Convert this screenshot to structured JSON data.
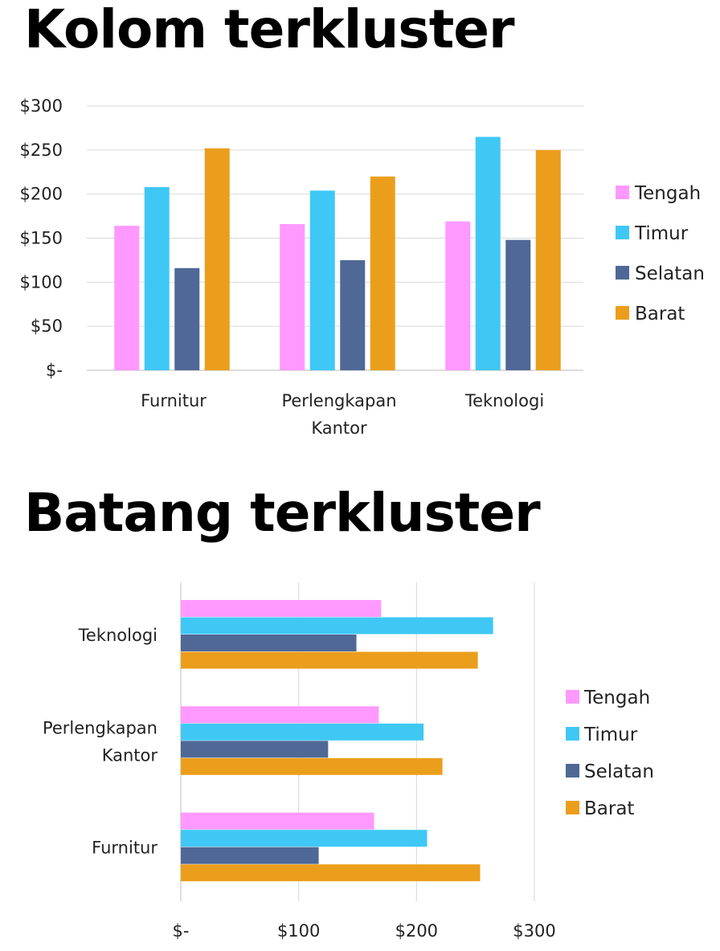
{
  "chart_data": [
    {
      "type": "bar",
      "orientation": "vertical",
      "title": "Kolom terkluster",
      "categories": [
        "Furnitur",
        "Perlengkapan Kantor",
        "Teknologi"
      ],
      "category_lines": [
        [
          "Furnitur"
        ],
        [
          "Perlengkapan",
          "Kantor"
        ],
        [
          "Teknologi"
        ]
      ],
      "series": [
        {
          "name": "Tengah",
          "color": "#FF99FF",
          "values": [
            164,
            166,
            169
          ]
        },
        {
          "name": "Timur",
          "color": "#3FC8F5",
          "values": [
            208,
            204,
            265
          ]
        },
        {
          "name": "Selatan",
          "color": "#4F6896",
          "values": [
            116,
            125,
            148
          ]
        },
        {
          "name": "Barat",
          "color": "#EB9E1C",
          "values": [
            252,
            220,
            250
          ]
        }
      ],
      "ylim": [
        0,
        300
      ],
      "ticks": [
        0,
        50,
        100,
        150,
        200,
        250,
        300
      ],
      "tick_labels": [
        "$-",
        "$50",
        "$100",
        "$150",
        "$200",
        "$250",
        "$300"
      ],
      "grid": true,
      "legend": "right"
    },
    {
      "type": "bar",
      "orientation": "horizontal",
      "title": "Batang terkluster",
      "categories": [
        "Teknologi",
        "Perlengkapan Kantor",
        "Furnitur"
      ],
      "category_lines": [
        [
          "Teknologi"
        ],
        [
          "Perlengkapan",
          "Kantor"
        ],
        [
          "Furnitur"
        ]
      ],
      "series": [
        {
          "name": "Tengah",
          "color": "#FF99FF",
          "values": [
            170,
            168,
            164
          ]
        },
        {
          "name": "Timur",
          "color": "#3FC8F5",
          "values": [
            265,
            206,
            209
          ]
        },
        {
          "name": "Selatan",
          "color": "#4F6896",
          "values": [
            149,
            125,
            117
          ]
        },
        {
          "name": "Barat",
          "color": "#EB9E1C",
          "values": [
            252,
            222,
            254
          ]
        }
      ],
      "xlim": [
        0,
        300
      ],
      "ticks": [
        0,
        100,
        200,
        300
      ],
      "tick_labels": [
        "$-",
        "$100",
        "$200",
        "$300"
      ],
      "grid": true,
      "legend": "right"
    }
  ]
}
